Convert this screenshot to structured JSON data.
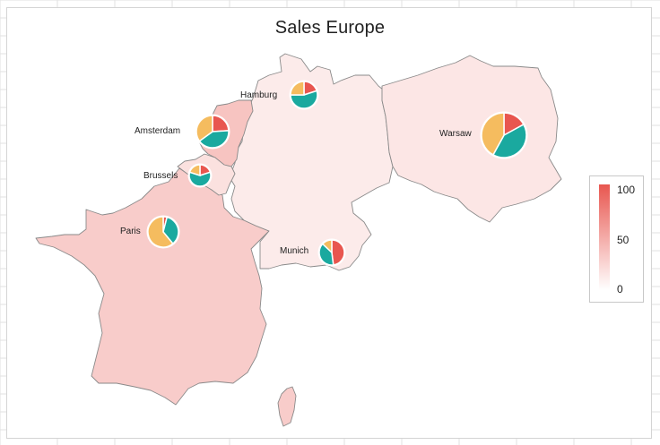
{
  "chart": {
    "title": "Sales Europe"
  },
  "colors": {
    "scale_high": "#e8564f",
    "scale_low": "#ffffff",
    "slice_a": "#e8564f",
    "slice_b": "#1aa99f",
    "slice_c": "#f5bc5f",
    "border": "#8a8a8a"
  },
  "regions": [
    {
      "name": "Netherlands",
      "value": 35
    },
    {
      "name": "Germany",
      "value": 12
    },
    {
      "name": "Poland",
      "value": 15
    },
    {
      "name": "Belgium",
      "value": 18
    },
    {
      "name": "France",
      "value": 30
    },
    {
      "name": "Corsica",
      "value": 30
    }
  ],
  "chart_data": {
    "type": "map",
    "title": "Sales Europe",
    "legend": {
      "placement": "right",
      "min": 0,
      "max": 100,
      "ticks": [
        "100",
        "50",
        "0"
      ]
    },
    "cities": [
      {
        "name": "Hamburg",
        "slices": [
          20,
          55,
          25
        ]
      },
      {
        "name": "Amsterdam",
        "slices": [
          24,
          41,
          35
        ]
      },
      {
        "name": "Brussels",
        "slices": [
          20,
          60,
          20
        ]
      },
      {
        "name": "Warsaw",
        "slices": [
          17,
          41,
          42
        ]
      },
      {
        "name": "Paris",
        "slices": [
          4,
          35,
          61
        ]
      },
      {
        "name": "Munich",
        "slices": [
          48,
          39,
          13
        ]
      }
    ]
  }
}
